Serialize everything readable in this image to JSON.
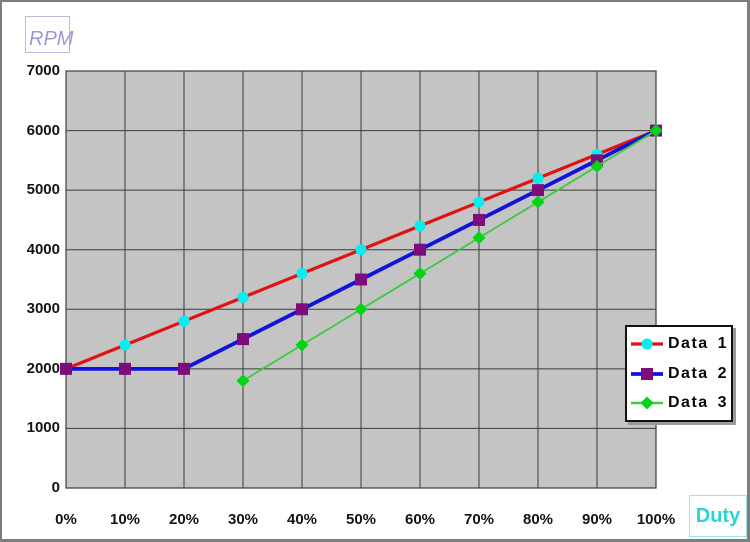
{
  "chart_data": {
    "type": "line",
    "x_axis_unit": "Duty",
    "y_axis_unit": "RPM",
    "categories": [
      "0%",
      "10%",
      "20%",
      "30%",
      "40%",
      "50%",
      "60%",
      "70%",
      "80%",
      "90%",
      "100%"
    ],
    "yticks": [
      0,
      1000,
      2000,
      3000,
      4000,
      5000,
      6000,
      7000
    ],
    "ytick_labels": [
      "0",
      "1000",
      "2000",
      "3000",
      "4000",
      "5000",
      "6000",
      "7000"
    ],
    "ylim": [
      0,
      7000
    ],
    "grid": true,
    "plot_bg_color": "#c4c4c4",
    "grid_color": "#3c3c3c",
    "legend_position": "right-overlapping-plot",
    "series": [
      {
        "name": "Data 1",
        "line_color": "#e01212",
        "line_width": 3.2,
        "marker": "circle",
        "marker_color": "#00efef",
        "marker_size": 11,
        "values": [
          2000,
          2400,
          2800,
          3200,
          3600,
          4000,
          4400,
          4800,
          5200,
          5600,
          6000
        ]
      },
      {
        "name": "Data 2",
        "line_color": "#1212dd",
        "line_width": 3.8,
        "marker": "square",
        "marker_color": "#7d0c7d",
        "marker_size": 12,
        "values": [
          2000,
          2000,
          2000,
          2500,
          3000,
          3500,
          4000,
          4500,
          5000,
          5500,
          6000
        ]
      },
      {
        "name": "Data 3",
        "line_color": "#3bcc3b",
        "line_width": 1.8,
        "marker": "diamond",
        "marker_color": "#00d414",
        "marker_size": 13,
        "values": [
          null,
          null,
          null,
          1800,
          2400,
          3000,
          3600,
          4200,
          4800,
          5400,
          6000
        ]
      }
    ]
  },
  "labels": {
    "y_axis_box": "RPM",
    "x_axis_box": "Duty"
  },
  "frame": {
    "border_color": "#7e7e7e",
    "legend_shadow_color": "#9a9a9a"
  }
}
